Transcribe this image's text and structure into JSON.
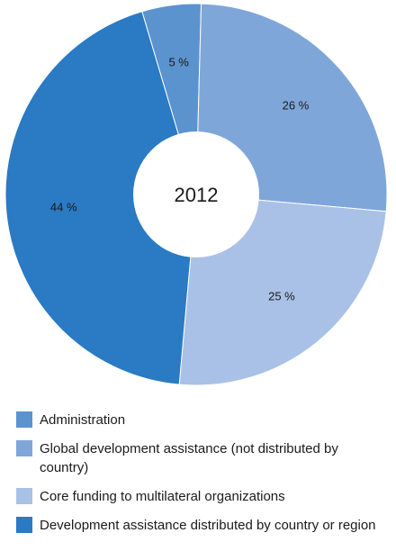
{
  "chart_data": {
    "type": "pie",
    "center_text": "2012",
    "slices": [
      {
        "label": "Administration",
        "value": 5,
        "display": "5 %",
        "color": "#5b93cf"
      },
      {
        "label": "Global development assistance (not distributed by country)",
        "value": 26,
        "display": "26 %",
        "color": "#7fa6d9"
      },
      {
        "label": "Core funding to multilateral organizations",
        "value": 25,
        "display": "25 %",
        "color": "#a9c1e6"
      },
      {
        "label": "Development assistance distributed by country or region",
        "value": 44,
        "display": "44 %",
        "color": "#2a7ac4"
      }
    ],
    "legend_position": "bottom"
  }
}
